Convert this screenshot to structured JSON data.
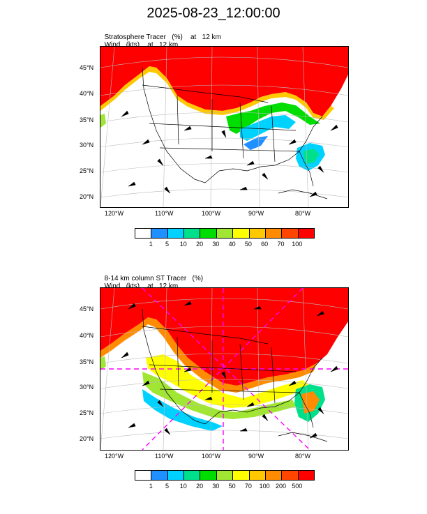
{
  "title": "2025-08-23_12:00:00",
  "panel1": {
    "var_label": "Stratosphere Tracer",
    "var_unit": "(%)",
    "level": "at",
    "level_value": "12 km",
    "wind_label": "Wind",
    "wind_unit": "(kts)",
    "wind_level": "at",
    "wind_level_value": "12 km",
    "colorbar_labels": [
      "1",
      "5",
      "10",
      "20",
      "30",
      "40",
      "50",
      "60",
      "70",
      "100"
    ]
  },
  "panel2": {
    "var_label": "8-14 km column ST Tracer",
    "var_unit": "(%)",
    "wind_label": "Wind",
    "wind_unit": "(kts)",
    "wind_level": "at",
    "wind_level_value": "12 km",
    "colorbar_labels": [
      "1",
      "5",
      "10",
      "20",
      "30",
      "50",
      "70",
      "100",
      "200",
      "500"
    ]
  },
  "lat_labels": [
    "45°N",
    "40°N",
    "35°N",
    "30°N",
    "25°N",
    "20°N"
  ],
  "lon_labels": [
    "120°W",
    "110°W",
    "100°W",
    "90°W",
    "80°W"
  ],
  "colors": [
    "#ffffff",
    "#1e90ff",
    "#00d2ff",
    "#00e08a",
    "#00dd00",
    "#a0e632",
    "#ffff00",
    "#ffc800",
    "#ff8c00",
    "#ff4500",
    "#ff0000"
  ]
}
